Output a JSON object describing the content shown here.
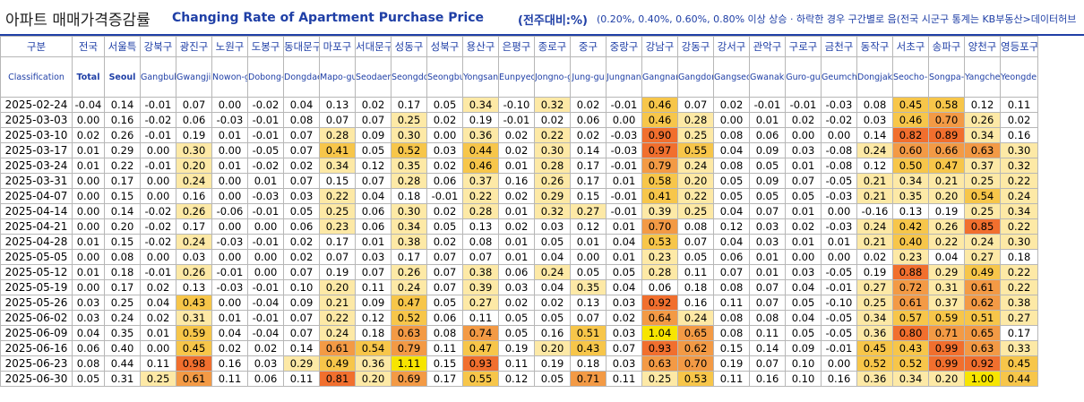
{
  "title": {
    "korean": "아파트 매매가격증감률",
    "english": "Changing Rate of Apartment Purchase Price",
    "unit": "(전주대비:%)",
    "note": "(0.20%, 0.40%, 0.60%, 0.80% 이상 상승 · 하락한 경우 구간별로 음(전국 시군구 통계는 KB부동산>데이터허브"
  },
  "header": {
    "first_ko": "구분",
    "first_en": "Classification",
    "columns": [
      {
        "ko": "전국",
        "en": "Total"
      },
      {
        "ko": "서울특",
        "en": "Seoul"
      },
      {
        "ko": "강북구",
        "en": "Gangbuk-gu"
      },
      {
        "ko": "광진구",
        "en": "Gwangjin-gu"
      },
      {
        "ko": "노원구",
        "en": "Nowon-gu"
      },
      {
        "ko": "도봉구",
        "en": "Dobong-gu"
      },
      {
        "ko": "동대문구",
        "en": "Dongdaemun-gu"
      },
      {
        "ko": "마포구",
        "en": "Mapo-gu"
      },
      {
        "ko": "서대문구",
        "en": "Seodaemun-gu"
      },
      {
        "ko": "성동구",
        "en": "Seongdong-gu"
      },
      {
        "ko": "성북구",
        "en": "Seongbuk-gu"
      },
      {
        "ko": "용산구",
        "en": "Yongsan-gu"
      },
      {
        "ko": "은평구",
        "en": "Eunpyeong-gu"
      },
      {
        "ko": "종로구",
        "en": "Jongno-gu"
      },
      {
        "ko": "중구",
        "en": "Jung-gu"
      },
      {
        "ko": "중랑구",
        "en": "Jungnang-gu"
      },
      {
        "ko": "강남구",
        "en": "Gangnam-gu"
      },
      {
        "ko": "강동구",
        "en": "Gangdong-gu"
      },
      {
        "ko": "강서구",
        "en": "Gangseo-gu"
      },
      {
        "ko": "관악구",
        "en": "Gwanak-gu"
      },
      {
        "ko": "구로구",
        "en": "Guro-gu"
      },
      {
        "ko": "금천구",
        "en": "Geumcheon-gu"
      },
      {
        "ko": "동작구",
        "en": "Dongjak-gu"
      },
      {
        "ko": "서초구",
        "en": "Seocho-gu"
      },
      {
        "ko": "송파구",
        "en": "Songpa-gu"
      },
      {
        "ko": "양천구",
        "en": "Yangcheon-gu"
      },
      {
        "ko": "영등포구",
        "en": "Yeongdeungpo-gu"
      }
    ]
  },
  "rows": [
    {
      "date": "2025-02-24",
      "values": [
        "-0.04",
        "0.14",
        "-0.01",
        "0.07",
        "0.00",
        "-0.02",
        "0.04",
        "0.13",
        "0.02",
        "0.17",
        "0.05",
        "0.34",
        "-0.10",
        "0.32",
        "0.02",
        "-0.01",
        "0.46",
        "0.07",
        "0.02",
        "-0.01",
        "-0.01",
        "-0.03",
        "0.08",
        "0.45",
        "0.58",
        "0.12",
        "0.11"
      ]
    },
    {
      "date": "2025-03-03",
      "values": [
        "0.00",
        "0.16",
        "-0.02",
        "0.06",
        "-0.03",
        "-0.01",
        "0.08",
        "0.07",
        "0.07",
        "0.25",
        "0.02",
        "0.19",
        "-0.01",
        "0.02",
        "0.06",
        "0.00",
        "0.46",
        "0.28",
        "0.00",
        "0.01",
        "0.02",
        "-0.02",
        "0.03",
        "0.46",
        "0.70",
        "0.26",
        "0.02"
      ]
    },
    {
      "date": "2025-03-10",
      "values": [
        "0.02",
        "0.26",
        "-0.01",
        "0.19",
        "0.01",
        "-0.01",
        "0.07",
        "0.28",
        "0.09",
        "0.30",
        "0.00",
        "0.36",
        "0.02",
        "0.22",
        "0.02",
        "-0.03",
        "0.90",
        "0.25",
        "0.08",
        "0.06",
        "0.00",
        "0.00",
        "0.14",
        "0.82",
        "0.89",
        "0.34",
        "0.16"
      ]
    },
    {
      "date": "2025-03-17",
      "values": [
        "0.01",
        "0.29",
        "0.00",
        "0.30",
        "0.00",
        "-0.05",
        "0.07",
        "0.41",
        "0.05",
        "0.52",
        "0.03",
        "0.44",
        "0.02",
        "0.30",
        "0.14",
        "-0.03",
        "0.97",
        "0.55",
        "0.04",
        "0.09",
        "0.03",
        "-0.08",
        "0.24",
        "0.60",
        "0.66",
        "0.63",
        "0.30"
      ]
    },
    {
      "date": "2025-03-24",
      "values": [
        "0.01",
        "0.22",
        "-0.01",
        "0.20",
        "0.01",
        "-0.02",
        "0.02",
        "0.34",
        "0.12",
        "0.35",
        "0.02",
        "0.46",
        "0.01",
        "0.28",
        "0.17",
        "-0.01",
        "0.79",
        "0.24",
        "0.08",
        "0.05",
        "0.01",
        "-0.08",
        "0.12",
        "0.50",
        "0.47",
        "0.37",
        "0.32"
      ]
    },
    {
      "date": "2025-03-31",
      "values": [
        "0.00",
        "0.17",
        "0.00",
        "0.24",
        "0.00",
        "0.01",
        "0.07",
        "0.15",
        "0.07",
        "0.28",
        "0.06",
        "0.37",
        "0.16",
        "0.26",
        "0.17",
        "0.01",
        "0.58",
        "0.20",
        "0.05",
        "0.09",
        "0.07",
        "-0.05",
        "0.21",
        "0.34",
        "0.21",
        "0.25",
        "0.22"
      ]
    },
    {
      "date": "2025-04-07",
      "values": [
        "0.00",
        "0.15",
        "0.00",
        "0.16",
        "0.00",
        "-0.03",
        "0.03",
        "0.22",
        "0.04",
        "0.18",
        "-0.01",
        "0.22",
        "0.02",
        "0.29",
        "0.15",
        "-0.01",
        "0.41",
        "0.22",
        "0.05",
        "0.05",
        "0.05",
        "-0.03",
        "0.21",
        "0.35",
        "0.20",
        "0.54",
        "0.24"
      ]
    },
    {
      "date": "2025-04-14",
      "values": [
        "0.00",
        "0.14",
        "-0.02",
        "0.26",
        "-0.06",
        "-0.01",
        "0.05",
        "0.25",
        "0.06",
        "0.30",
        "0.02",
        "0.28",
        "0.01",
        "0.32",
        "0.27",
        "-0.01",
        "0.39",
        "0.25",
        "0.04",
        "0.07",
        "0.01",
        "0.00",
        "-0.16",
        "0.13",
        "0.19",
        "0.25",
        "0.34"
      ]
    },
    {
      "date": "2025-04-21",
      "values": [
        "0.00",
        "0.20",
        "-0.02",
        "0.17",
        "0.00",
        "0.00",
        "0.06",
        "0.23",
        "0.06",
        "0.34",
        "0.05",
        "0.13",
        "0.02",
        "0.03",
        "0.12",
        "0.01",
        "0.70",
        "0.08",
        "0.12",
        "0.03",
        "0.02",
        "-0.03",
        "0.24",
        "0.42",
        "0.26",
        "0.85",
        "0.22"
      ]
    },
    {
      "date": "2025-04-28",
      "values": [
        "0.01",
        "0.15",
        "-0.02",
        "0.24",
        "-0.03",
        "-0.01",
        "0.02",
        "0.17",
        "0.01",
        "0.38",
        "0.02",
        "0.08",
        "0.01",
        "0.05",
        "0.01",
        "0.04",
        "0.53",
        "0.07",
        "0.04",
        "0.03",
        "0.01",
        "0.01",
        "0.21",
        "0.40",
        "0.22",
        "0.24",
        "0.30"
      ]
    },
    {
      "date": "2025-05-05",
      "values": [
        "0.00",
        "0.08",
        "0.00",
        "0.03",
        "0.00",
        "0.00",
        "0.02",
        "0.07",
        "0.03",
        "0.17",
        "0.07",
        "0.07",
        "0.01",
        "0.04",
        "0.00",
        "0.01",
        "0.23",
        "0.05",
        "0.06",
        "0.01",
        "0.00",
        "0.00",
        "0.02",
        "0.23",
        "0.04",
        "0.27",
        "0.18"
      ]
    },
    {
      "date": "2025-05-12",
      "values": [
        "0.01",
        "0.18",
        "-0.01",
        "0.26",
        "-0.01",
        "0.00",
        "0.07",
        "0.19",
        "0.07",
        "0.26",
        "0.07",
        "0.38",
        "0.06",
        "0.24",
        "0.05",
        "0.05",
        "0.28",
        "0.11",
        "0.07",
        "0.01",
        "0.03",
        "-0.05",
        "0.19",
        "0.88",
        "0.29",
        "0.49",
        "0.22"
      ]
    },
    {
      "date": "2025-05-19",
      "values": [
        "0.00",
        "0.17",
        "0.02",
        "0.13",
        "-0.03",
        "-0.01",
        "0.10",
        "0.20",
        "0.11",
        "0.24",
        "0.07",
        "0.39",
        "0.03",
        "0.04",
        "0.35",
        "0.04",
        "0.06",
        "0.18",
        "0.08",
        "0.07",
        "0.04",
        "-0.01",
        "0.27",
        "0.72",
        "0.31",
        "0.61",
        "0.22"
      ]
    },
    {
      "date": "2025-05-26",
      "values": [
        "0.03",
        "0.25",
        "0.04",
        "0.43",
        "0.00",
        "-0.04",
        "0.09",
        "0.21",
        "0.09",
        "0.47",
        "0.05",
        "0.27",
        "0.02",
        "0.02",
        "0.13",
        "0.03",
        "0.92",
        "0.16",
        "0.11",
        "0.07",
        "0.05",
        "-0.10",
        "0.25",
        "0.61",
        "0.37",
        "0.62",
        "0.38"
      ]
    },
    {
      "date": "2025-06-02",
      "values": [
        "0.03",
        "0.24",
        "0.02",
        "0.31",
        "0.01",
        "-0.01",
        "0.07",
        "0.22",
        "0.12",
        "0.52",
        "0.06",
        "0.11",
        "0.05",
        "0.05",
        "0.07",
        "0.02",
        "0.64",
        "0.24",
        "0.08",
        "0.08",
        "0.04",
        "-0.05",
        "0.34",
        "0.57",
        "0.59",
        "0.51",
        "0.27"
      ]
    },
    {
      "date": "2025-06-09",
      "values": [
        "0.04",
        "0.35",
        "0.01",
        "0.59",
        "0.04",
        "-0.04",
        "0.07",
        "0.24",
        "0.18",
        "0.63",
        "0.08",
        "0.74",
        "0.05",
        "0.16",
        "0.51",
        "0.03",
        "1.04",
        "0.65",
        "0.08",
        "0.11",
        "0.05",
        "-0.05",
        "0.36",
        "0.80",
        "0.71",
        "0.65",
        "0.17"
      ]
    },
    {
      "date": "2025-06-16",
      "values": [
        "0.06",
        "0.40",
        "0.00",
        "0.45",
        "0.02",
        "0.02",
        "0.14",
        "0.61",
        "0.54",
        "0.79",
        "0.11",
        "0.47",
        "0.19",
        "0.20",
        "0.43",
        "0.07",
        "0.93",
        "0.62",
        "0.15",
        "0.14",
        "0.09",
        "-0.01",
        "0.45",
        "0.43",
        "0.99",
        "0.63",
        "0.33"
      ]
    },
    {
      "date": "2025-06-23",
      "values": [
        "0.08",
        "0.44",
        "0.11",
        "0.98",
        "0.16",
        "0.03",
        "0.29",
        "0.49",
        "0.36",
        "1.11",
        "0.15",
        "0.93",
        "0.11",
        "0.19",
        "0.18",
        "0.03",
        "0.63",
        "0.70",
        "0.19",
        "0.07",
        "0.10",
        "0.00",
        "0.52",
        "0.52",
        "0.99",
        "0.92",
        "0.45"
      ]
    },
    {
      "date": "2025-06-30",
      "values": [
        "0.05",
        "0.31",
        "0.25",
        "0.61",
        "0.11",
        "0.06",
        "0.11",
        "0.81",
        "0.20",
        "0.69",
        "0.17",
        "0.55",
        "0.12",
        "0.05",
        "0.71",
        "0.11",
        "0.25",
        "0.53",
        "0.11",
        "0.16",
        "0.10",
        "0.16",
        "0.36",
        "0.34",
        "0.20",
        "1.00",
        "0.44"
      ]
    }
  ],
  "cell_colors": {
    "under_0_20": "#ffffff",
    "from_0_20": "#fde9a6",
    "from_0_40": "#f7c64a",
    "from_0_60": "#f39a45",
    "from_0_80": "#f16f2e",
    "highlight_max": "#f7e500"
  }
}
